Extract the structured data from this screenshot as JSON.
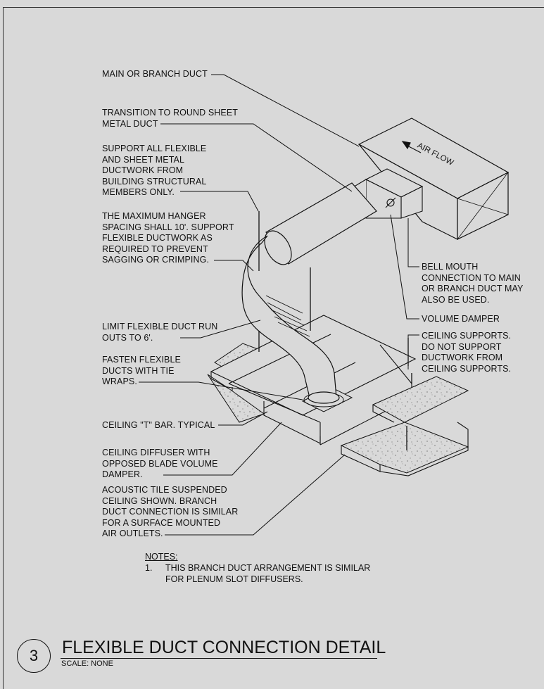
{
  "labels": {
    "main_branch_duct": "MAIN OR BRANCH DUCT",
    "transition": "TRANSITION TO ROUND SHEET\nMETAL DUCT",
    "support": "SUPPORT ALL FLEXIBLE\nAND SHEET METAL\nDUCTWORK FROM\nBUILDING STRUCTURAL\nMEMBERS ONLY.",
    "hanger_spacing": "THE MAXIMUM HANGER\nSPACING SHALL 10'. SUPPORT\nFLEXIBLE DUCTWORK AS\nREQUIRED TO PREVENT\nSAGGING OR CRIMPING.",
    "limit_flex": "LIMIT FLEXIBLE DUCT RUN\nOUTS TO 6'.",
    "fasten": "FASTEN FLEXIBLE\nDUCTS WITH TIE\nWRAPS.",
    "t_bar": "CEILING \"T\" BAR. TYPICAL",
    "diffuser": "CEILING DIFFUSER WITH\nOPPOSED BLADE VOLUME\nDAMPER.",
    "acoustic": "ACOUSTIC TILE SUSPENDED\nCEILING SHOWN. BRANCH\nDUCT CONNECTION IS SIMILAR\nFOR A SURFACE MOUNTED\nAIR OUTLETS.",
    "bell_mouth": "BELL MOUTH\nCONNECTION TO MAIN\nOR BRANCH DUCT MAY\nALSO BE USED.",
    "volume_damper": "VOLUME DAMPER",
    "ceiling_supports": "CEILING SUPPORTS.\nDO NOT SUPPORT\nDUCTWORK FROM\nCEILING SUPPORTS.",
    "air_flow": "AIR FLOW"
  },
  "notes": {
    "heading": "NOTES:",
    "item_number": "1.",
    "item_text": "THIS BRANCH DUCT ARRANGEMENT IS SIMILAR\nFOR PLENUM SLOT DIFFUSERS."
  },
  "title_block": {
    "detail_number": "3",
    "title": "FLEXIBLE DUCT CONNECTION DETAIL",
    "scale": "SCALE: NONE"
  }
}
